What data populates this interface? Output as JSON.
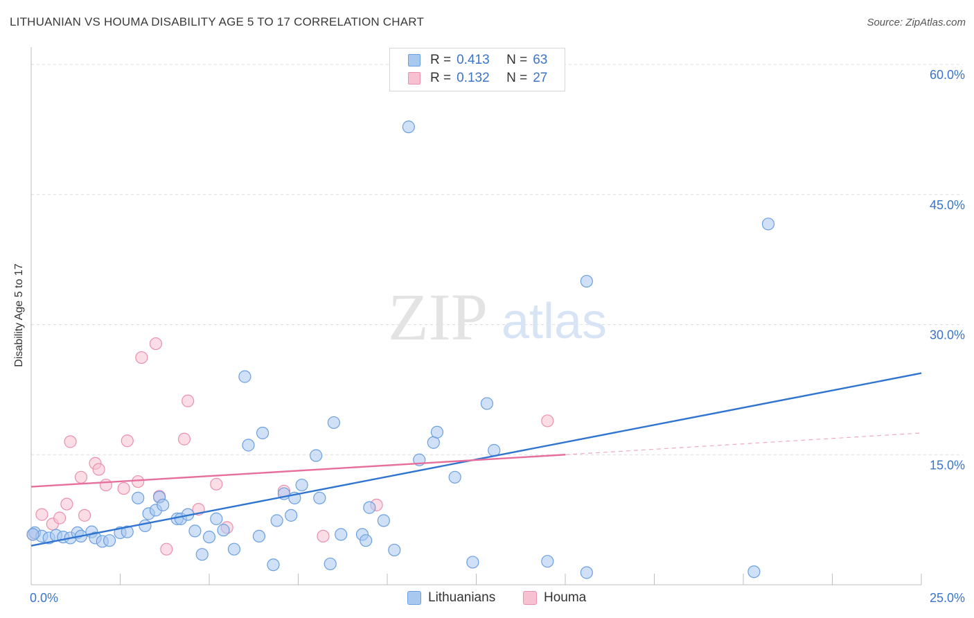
{
  "title": "LITHUANIAN VS HOUMA DISABILITY AGE 5 TO 17 CORRELATION CHART",
  "source": "Source: ZipAtlas.com",
  "watermark": {
    "zip": "ZIP",
    "atlas": "atlas"
  },
  "legend": {
    "rows": [
      {
        "r_label": "R =",
        "r_value": "0.413",
        "n_label": "N =",
        "n_value": "63",
        "color": "#a9c8f0",
        "border": "#6a9fe0"
      },
      {
        "r_label": "R =",
        "r_value": "0.132",
        "n_label": "N =",
        "n_value": "27",
        "color": "#f7c1d1",
        "border": "#ea8fae"
      }
    ]
  },
  "bottom_legend": [
    {
      "label": "Lithuanians",
      "color": "#a9c8f0",
      "border": "#6a9fe0"
    },
    {
      "label": "Houma",
      "color": "#f7c1d1",
      "border": "#ea8fae"
    }
  ],
  "chart_data": {
    "type": "scatter",
    "title": "LITHUANIAN VS HOUMA DISABILITY AGE 5 TO 17 CORRELATION CHART",
    "xlabel": "",
    "ylabel": "Disability Age 5 to 17",
    "xlim": [
      0,
      25
    ],
    "ylim": [
      0,
      62
    ],
    "x_tick_labels": [
      "0.0%",
      "25.0%"
    ],
    "y_ticks": [
      15,
      30,
      45,
      60
    ],
    "y_tick_labels": [
      "15.0%",
      "30.0%",
      "45.0%",
      "60.0%"
    ],
    "grid": true,
    "series": [
      {
        "name": "Lithuanians",
        "color": "#6a9fe0",
        "fill": "#a9c8f0",
        "trend": {
          "x": [
            0,
            25
          ],
          "y": [
            4.5,
            24.4
          ],
          "style": "solid",
          "color": "#2f74d0"
        },
        "points": [
          [
            0.1,
            6.0
          ],
          [
            0.3,
            5.6
          ],
          [
            0.5,
            5.4
          ],
          [
            0.7,
            5.7
          ],
          [
            0.9,
            5.5
          ],
          [
            1.1,
            5.4
          ],
          [
            1.3,
            6.0
          ],
          [
            1.4,
            5.6
          ],
          [
            1.7,
            6.1
          ],
          [
            1.8,
            5.4
          ],
          [
            2.0,
            5.0
          ],
          [
            2.2,
            5.1
          ],
          [
            2.5,
            6.0
          ],
          [
            2.7,
            6.1
          ],
          [
            3.0,
            10.0
          ],
          [
            3.2,
            6.8
          ],
          [
            3.3,
            8.2
          ],
          [
            3.5,
            8.6
          ],
          [
            3.6,
            10.1
          ],
          [
            3.7,
            9.2
          ],
          [
            4.1,
            7.6
          ],
          [
            4.2,
            7.6
          ],
          [
            4.4,
            8.1
          ],
          [
            4.6,
            6.2
          ],
          [
            4.8,
            3.5
          ],
          [
            5.0,
            5.5
          ],
          [
            5.2,
            7.6
          ],
          [
            5.4,
            6.3
          ],
          [
            5.7,
            4.1
          ],
          [
            6.0,
            24.0
          ],
          [
            6.1,
            16.1
          ],
          [
            6.4,
            5.6
          ],
          [
            6.5,
            17.5
          ],
          [
            6.8,
            2.3
          ],
          [
            6.9,
            7.4
          ],
          [
            7.1,
            10.5
          ],
          [
            7.3,
            8.0
          ],
          [
            7.4,
            10.0
          ],
          [
            7.6,
            11.5
          ],
          [
            8.0,
            14.9
          ],
          [
            8.1,
            10.0
          ],
          [
            8.4,
            2.4
          ],
          [
            8.5,
            18.7
          ],
          [
            8.7,
            5.8
          ],
          [
            9.3,
            5.8
          ],
          [
            9.4,
            5.1
          ],
          [
            9.5,
            8.9
          ],
          [
            9.9,
            7.4
          ],
          [
            10.2,
            4.0
          ],
          [
            10.6,
            52.8
          ],
          [
            10.9,
            14.4
          ],
          [
            11.3,
            16.4
          ],
          [
            11.4,
            17.6
          ],
          [
            11.9,
            12.4
          ],
          [
            12.4,
            2.6
          ],
          [
            12.8,
            20.9
          ],
          [
            13.0,
            15.5
          ],
          [
            14.5,
            2.7
          ],
          [
            15.6,
            35.0
          ],
          [
            15.6,
            1.4
          ],
          [
            20.3,
            1.5
          ],
          [
            20.7,
            41.6
          ],
          [
            0.05,
            5.8
          ]
        ]
      },
      {
        "name": "Houma",
        "color": "#ea8fae",
        "fill": "#f7c1d1",
        "trend": {
          "x": [
            0,
            15
          ],
          "y": [
            11.3,
            15.0
          ],
          "style": "solid",
          "color": "#e6709b",
          "dashed_extension": {
            "x": [
              15,
              25
            ],
            "y": [
              15.0,
              17.5
            ]
          }
        },
        "points": [
          [
            0.05,
            5.8
          ],
          [
            0.3,
            8.1
          ],
          [
            0.6,
            7.0
          ],
          [
            0.8,
            7.7
          ],
          [
            1.0,
            9.3
          ],
          [
            1.1,
            16.5
          ],
          [
            1.4,
            12.4
          ],
          [
            1.5,
            8.0
          ],
          [
            1.8,
            14.0
          ],
          [
            1.9,
            13.3
          ],
          [
            2.1,
            11.5
          ],
          [
            2.6,
            11.1
          ],
          [
            2.7,
            16.6
          ],
          [
            3.0,
            11.9
          ],
          [
            3.1,
            26.2
          ],
          [
            3.5,
            27.8
          ],
          [
            3.6,
            10.2
          ],
          [
            3.8,
            4.1
          ],
          [
            4.3,
            16.8
          ],
          [
            4.4,
            21.2
          ],
          [
            4.7,
            8.7
          ],
          [
            5.2,
            11.6
          ],
          [
            5.5,
            6.6
          ],
          [
            7.1,
            10.8
          ],
          [
            8.2,
            5.6
          ],
          [
            9.7,
            9.2
          ],
          [
            14.5,
            18.9
          ]
        ]
      }
    ]
  }
}
